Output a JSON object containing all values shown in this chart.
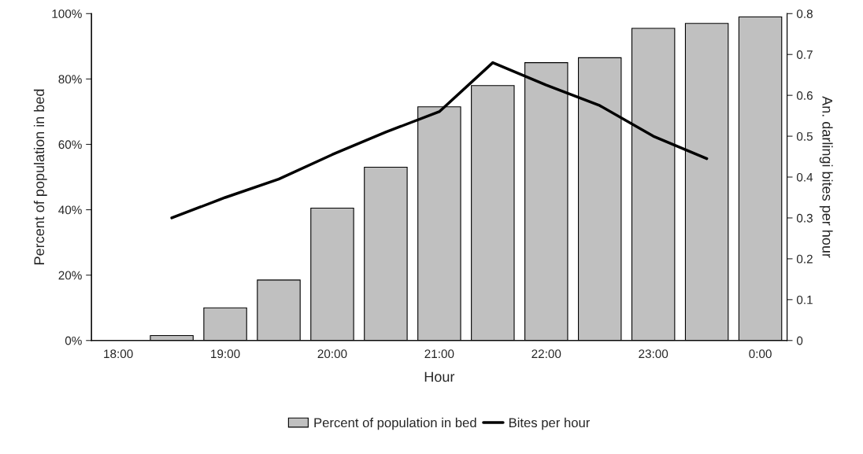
{
  "chart_data": {
    "type": "bar",
    "xlabel": "Hour",
    "ylabel": "Percent of population in bed",
    "y2label": "An. darlingi bites per hour",
    "categories": [
      "18:00",
      null,
      "19:00",
      null,
      "20:00",
      null,
      "21:00",
      null,
      "22:00",
      null,
      "23:00",
      null,
      "0:00"
    ],
    "series": [
      {
        "name": "Percent of population in bed",
        "color": "#c0c0c0",
        "values": [
          null,
          1.5,
          10,
          18.5,
          40.5,
          53,
          71.5,
          78,
          85,
          86.5,
          95.5,
          97,
          99
        ]
      },
      {
        "name": "Bites per hour",
        "type": "line",
        "axis": "y2",
        "color": "#000000",
        "values": [
          null,
          0.3,
          0.35,
          0.395,
          0.455,
          0.51,
          0.56,
          0.68,
          0.625,
          0.575,
          0.5,
          0.445,
          null
        ]
      }
    ],
    "ylim": [
      0,
      100
    ],
    "yticks": [
      {
        "value": 0,
        "label": "0%"
      },
      {
        "value": 20,
        "label": "20%"
      },
      {
        "value": 40,
        "label": "40%"
      },
      {
        "value": 60,
        "label": "60%"
      },
      {
        "value": 80,
        "label": "80%"
      },
      {
        "value": 100,
        "label": "100%"
      }
    ],
    "y2lim": [
      0,
      0.8
    ],
    "y2ticks": [
      0,
      0.1,
      0.2,
      0.3,
      0.4,
      0.5,
      0.6,
      0.7,
      0.8
    ],
    "legend": "bottom",
    "grid": false
  }
}
